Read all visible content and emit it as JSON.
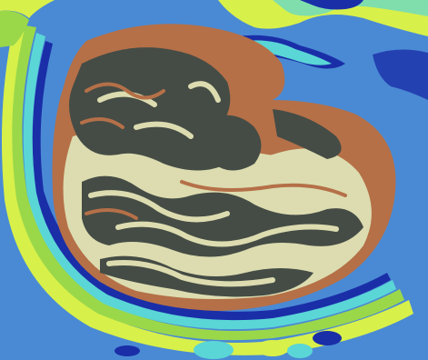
{
  "image": {
    "description_kind": "segmented-tissue-cross-section",
    "colors": {
      "background": "#4a8ad4",
      "outer_band_yellow": "#d8f04a",
      "outer_band_green": "#9ad84a",
      "cyan": "#5ad6d6",
      "navy": "#1a2ea8",
      "brown": "#b57048",
      "dark_gray": "#454c45",
      "cream": "#dcdcb0",
      "bright_green": "#60e040"
    }
  }
}
